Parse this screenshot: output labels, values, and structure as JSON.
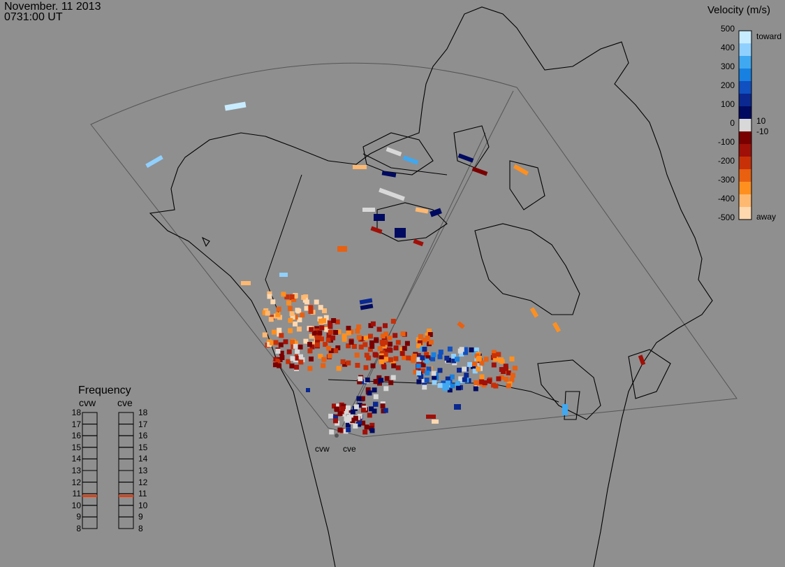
{
  "header": {
    "date": "November. 11 2013",
    "time": "0731:00 UT"
  },
  "colorbar": {
    "title": "Velocity (m/s)",
    "ticks": [
      "500",
      "400",
      "300",
      "200",
      "100",
      "0",
      "-100",
      "-200",
      "-300",
      "-400",
      "-500"
    ],
    "inner_labels": {
      "top": "toward",
      "plus10": "10",
      "minus10": "-10",
      "bottom": "away"
    },
    "colors": [
      "#ffd8b0",
      "#ffb870",
      "#ff9020",
      "#e86010",
      "#c83008",
      "#a01008",
      "#7a0000",
      "#d8d8d8",
      "#000a60",
      "#0a2890",
      "#1050c0",
      "#1880e0",
      "#40a8f0",
      "#90d0ff",
      "#c8ecff"
    ]
  },
  "frequency": {
    "title": "Frequency",
    "radars": [
      {
        "name": "cvw",
        "value_mhz": 10.8
      },
      {
        "name": "cve",
        "value_mhz": 10.8
      }
    ],
    "scale": [
      "18",
      "17",
      "16",
      "15",
      "14",
      "13",
      "12",
      "11",
      "10",
      "9",
      "8"
    ],
    "marker_color": "#e04010"
  },
  "radars": {
    "cvw": "cvw",
    "cve": "cve"
  },
  "colors": {
    "background": "#8f8f8f",
    "outline": "#000000",
    "fov": "#555555"
  }
}
